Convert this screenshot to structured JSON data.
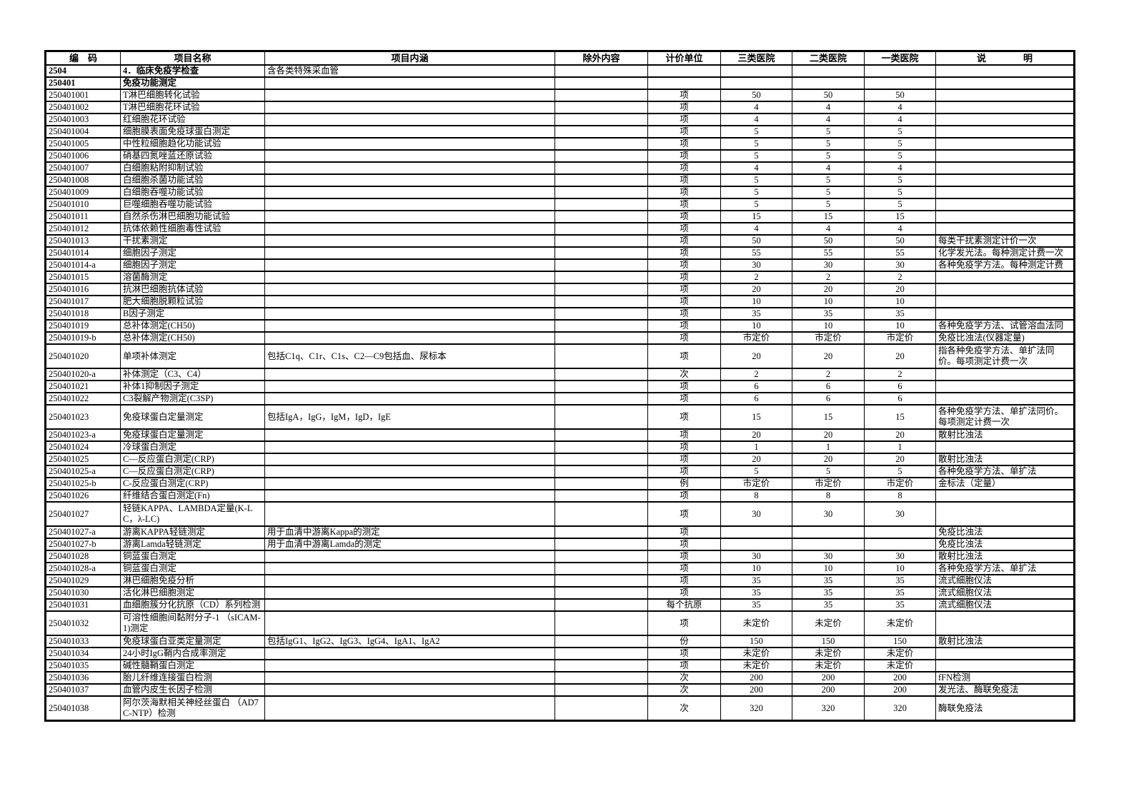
{
  "table": {
    "headers": [
      "编　码",
      "项目名称",
      "项目内涵",
      "除外内容",
      "计价单位",
      "三类医院",
      "二类医院",
      "一类医院",
      "说　　　　明"
    ],
    "rows": [
      {
        "code": "2504",
        "name": "4．临床免疫学检查",
        "content": "含各类特殊采血管",
        "bold": true
      },
      {
        "code": "250401",
        "name": "免疫功能测定",
        "bold": true
      },
      {
        "code": "250401001",
        "name": "T淋巴细胞转化试验",
        "unit": "项",
        "h3": "50",
        "h2": "50",
        "h1": "50"
      },
      {
        "code": "250401002",
        "name": "T淋巴细胞花环试验",
        "unit": "项",
        "h3": "4",
        "h2": "4",
        "h1": "4"
      },
      {
        "code": "250401003",
        "name": "红细胞花环试验",
        "unit": "项",
        "h3": "4",
        "h2": "4",
        "h1": "4"
      },
      {
        "code": "250401004",
        "name": "细胞膜表面免疫球蛋白测定",
        "unit": "项",
        "h3": "5",
        "h2": "5",
        "h1": "5"
      },
      {
        "code": "250401005",
        "name": "中性粒细胞趋化功能试验",
        "unit": "项",
        "h3": "5",
        "h2": "5",
        "h1": "5"
      },
      {
        "code": "250401006",
        "name": "硝基四氮唑蓝还原试验",
        "unit": "项",
        "h3": "5",
        "h2": "5",
        "h1": "5"
      },
      {
        "code": "250401007",
        "name": "白细胞粘附抑制试验",
        "unit": "项",
        "h3": "4",
        "h2": "4",
        "h1": "4"
      },
      {
        "code": "250401008",
        "name": "白细胞杀菌功能试验",
        "unit": "项",
        "h3": "5",
        "h2": "5",
        "h1": "5"
      },
      {
        "code": "250401009",
        "name": "白细胞吞噬功能试验",
        "unit": "项",
        "h3": "5",
        "h2": "5",
        "h1": "5"
      },
      {
        "code": "250401010",
        "name": "巨噬细胞吞噬功能试验",
        "unit": "项",
        "h3": "5",
        "h2": "5",
        "h1": "5"
      },
      {
        "code": "250401011",
        "name": "自然杀伤淋巴细胞功能试验",
        "unit": "项",
        "h3": "15",
        "h2": "15",
        "h1": "15"
      },
      {
        "code": "250401012",
        "name": "抗体依赖性细胞毒性试验",
        "unit": "项",
        "h3": "4",
        "h2": "4",
        "h1": "4"
      },
      {
        "code": "250401013",
        "name": "干扰素测定",
        "unit": "项",
        "h3": "50",
        "h2": "50",
        "h1": "50",
        "note": "每类干扰素测定计价一次"
      },
      {
        "code": "250401014",
        "name": "细胞因子测定",
        "unit": "项",
        "h3": "55",
        "h2": "55",
        "h1": "55",
        "note": "化学发光法。每种测定计费一次"
      },
      {
        "code": "250401014-a",
        "name": "细胞因子测定",
        "unit": "项",
        "h3": "30",
        "h2": "30",
        "h1": "30",
        "note": "各种免疫学方法。每种测定计费"
      },
      {
        "code": "250401015",
        "name": "溶菌酶测定",
        "unit": "项",
        "h3": "2",
        "h2": "2",
        "h1": "2"
      },
      {
        "code": "250401016",
        "name": "抗淋巴细胞抗体试验",
        "unit": "项",
        "h3": "20",
        "h2": "20",
        "h1": "20"
      },
      {
        "code": "250401017",
        "name": "肥大细胞脱颗粒试验",
        "unit": "项",
        "h3": "10",
        "h2": "10",
        "h1": "10"
      },
      {
        "code": "250401018",
        "name": "B因子测定",
        "unit": "项",
        "h3": "35",
        "h2": "35",
        "h1": "35"
      },
      {
        "code": "250401019",
        "name": "总补体测定(CH50)",
        "unit": "项",
        "h3": "10",
        "h2": "10",
        "h1": "10",
        "note": "各种免疫学方法、试管溶血法同"
      },
      {
        "code": "250401019-b",
        "name": "总补体测定(CH50)",
        "unit": "项",
        "h3": "市定价",
        "h2": "市定价",
        "h1": "市定价",
        "note": "免疫比浊法(仪器定量)"
      },
      {
        "code": "250401020",
        "name": "单项补体测定",
        "content": "包括C1q、C1r、C1s、C2—C9包括血、尿标本",
        "unit": "项",
        "h3": "20",
        "h2": "20",
        "h1": "20",
        "note": "指各种免疫学方法、单扩法同价。每项测定计费一次",
        "tall": true
      },
      {
        "code": "250401020-a",
        "name": "补体测定（C3、C4）",
        "unit": "次",
        "h3": "2",
        "h2": "2",
        "h1": "2"
      },
      {
        "code": "250401021",
        "name": "补体1抑制因子测定",
        "unit": "项",
        "h3": "6",
        "h2": "6",
        "h1": "6"
      },
      {
        "code": "250401022",
        "name": "C3裂解产物测定(C3SP)",
        "unit": "项",
        "h3": "6",
        "h2": "6",
        "h1": "6"
      },
      {
        "code": "250401023",
        "name": "免疫球蛋白定量测定",
        "content": "包括IgA，IgG，IgM，IgD，IgE",
        "unit": "项",
        "h3": "15",
        "h2": "15",
        "h1": "15",
        "note": "各种免疫学方法、单扩法同价。每项测定计费一次",
        "tall": true
      },
      {
        "code": "250401023-a",
        "name": "免疫球蛋白定量测定",
        "unit": "项",
        "h3": "20",
        "h2": "20",
        "h1": "20",
        "note": "散射比浊法"
      },
      {
        "code": "250401024",
        "name": "冷球蛋白测定",
        "unit": "项",
        "h3": "1",
        "h2": "1",
        "h1": "1"
      },
      {
        "code": "250401025",
        "name": "C—反应蛋白测定(CRP)",
        "unit": "项",
        "h3": "20",
        "h2": "20",
        "h1": "20",
        "note": "散射比浊法"
      },
      {
        "code": "250401025-a",
        "name": "C—反应蛋白测定(CRP)",
        "unit": "项",
        "h3": "5",
        "h2": "5",
        "h1": "5",
        "note": "各种免疫学方法、单扩法"
      },
      {
        "code": "250401025-b",
        "name": "C-反应蛋白测定(CRP)",
        "unit": "例",
        "h3": "市定价",
        "h2": "市定价",
        "h1": "市定价",
        "note": "金标法（定量）"
      },
      {
        "code": "250401026",
        "name": "纤维结合蛋白测定(Fn)",
        "unit": "项",
        "h3": "8",
        "h2": "8",
        "h1": "8"
      },
      {
        "code": "250401027",
        "name": "轻链KAPPA、LAMBDA定量(K-LC，λ-LC)",
        "unit": "项",
        "h3": "30",
        "h2": "30",
        "h1": "30",
        "tall": true
      },
      {
        "code": "250401027-a",
        "name": "游离KAPPA轻链测定",
        "content": "用于血清中游离Kappa的测定",
        "unit": "项",
        "note": "免疫比浊法"
      },
      {
        "code": "250401027-b",
        "name": "游离Lamda轻链测定",
        "content": "用于血清中游离Lamda的测定",
        "unit": "项",
        "note": "免疫比浊法"
      },
      {
        "code": "250401028",
        "name": "铜蓝蛋白测定",
        "unit": "项",
        "h3": "30",
        "h2": "30",
        "h1": "30",
        "note": "散射比浊法"
      },
      {
        "code": "250401028-a",
        "name": "铜蓝蛋白测定",
        "unit": "项",
        "h3": "10",
        "h2": "10",
        "h1": "10",
        "note": "各种免疫学方法、单扩法"
      },
      {
        "code": "250401029",
        "name": "淋巴细胞免疫分析",
        "unit": "项",
        "h3": "35",
        "h2": "35",
        "h1": "35",
        "note": "流式细胞仪法"
      },
      {
        "code": "250401030",
        "name": "活化淋巴细胞测定",
        "unit": "项",
        "h3": "35",
        "h2": "35",
        "h1": "35",
        "note": "流式细胞仪法"
      },
      {
        "code": "250401031",
        "name": "血细胞簇分化抗原（CD）系列检测",
        "unit": "每个抗原",
        "h3": "35",
        "h2": "35",
        "h1": "35",
        "note": "流式细胞仪法"
      },
      {
        "code": "250401032",
        "name": "可溶性细胞间黏附分子-1 （sICAM-1)测定",
        "unit": "项",
        "h3": "未定价",
        "h2": "未定价",
        "h1": "未定价",
        "tall": true
      },
      {
        "code": "250401033",
        "name": "免疫球蛋白亚类定量测定",
        "content": "包括IgG1、IgG2、IgG3、IgG4、IgA1、IgA2",
        "unit": "份",
        "h3": "150",
        "h2": "150",
        "h1": "150",
        "note": "散射比浊法"
      },
      {
        "code": "250401034",
        "name": "24小时IgG鞘内合成率测定",
        "unit": "项",
        "h3": "未定价",
        "h2": "未定价",
        "h1": "未定价"
      },
      {
        "code": "250401035",
        "name": "碱性髓鞘蛋白测定",
        "unit": "项",
        "h3": "未定价",
        "h2": "未定价",
        "h1": "未定价"
      },
      {
        "code": "250401036",
        "name": "胎儿纤维连接蛋白检测",
        "unit": "次",
        "h3": "200",
        "h2": "200",
        "h1": "200",
        "note": "fFN检测"
      },
      {
        "code": "250401037",
        "name": "血管内皮生长因子检测",
        "unit": "次",
        "h3": "200",
        "h2": "200",
        "h1": "200",
        "note": "发光法、酶联免疫法"
      },
      {
        "code": "250401038",
        "name": "阿尔茨海默相关神经丝蛋白 （AD7C-NTP）检测",
        "unit": "次",
        "h3": "320",
        "h2": "320",
        "h1": "320",
        "note": "酶联免疫法",
        "tall": true
      }
    ]
  }
}
